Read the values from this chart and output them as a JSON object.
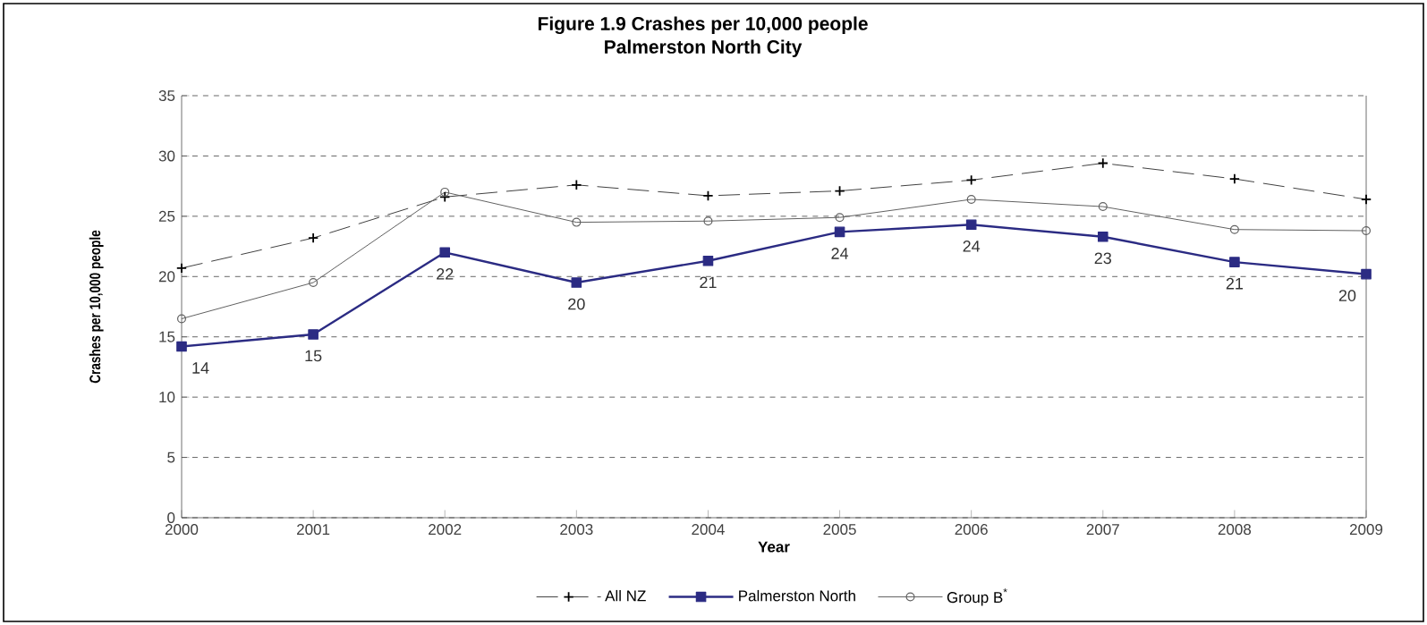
{
  "chart_data": {
    "type": "line",
    "title": "Figure 1.9 Crashes per 10,000 people",
    "subtitle": "Palmerston North City",
    "xlabel": "Year",
    "ylabel": "Crashes per 10,000 people",
    "x": [
      2000,
      2001,
      2002,
      2003,
      2004,
      2005,
      2006,
      2007,
      2008,
      2009
    ],
    "xlim": [
      2000,
      2009
    ],
    "xticks": [
      2000,
      2001,
      2002,
      2003,
      2004,
      2005,
      2006,
      2007,
      2008,
      2009
    ],
    "ylim": [
      0,
      35
    ],
    "yticks": [
      0,
      5,
      10,
      15,
      20,
      25,
      30,
      35
    ],
    "grid": "y",
    "legend": "bottom",
    "series": [
      {
        "name": "All NZ",
        "color": "#404040",
        "marker": "cross",
        "line_style": "dashed",
        "values": [
          20.7,
          23.2,
          26.6,
          27.6,
          26.7,
          27.1,
          28.0,
          29.4,
          28.1,
          26.4
        ]
      },
      {
        "name": "Palmerston North",
        "color": "#2b2b83",
        "marker": "square",
        "line_style": "solid",
        "values": [
          14.2,
          15.2,
          22.0,
          19.5,
          21.3,
          23.7,
          24.3,
          23.3,
          21.2,
          20.2
        ],
        "value_labels": [
          "14",
          "15",
          "22",
          "20",
          "21",
          "24",
          "24",
          "23",
          "21",
          "20"
        ]
      },
      {
        "name": "Group B$^{*}$",
        "color": "#606060",
        "marker": "circle",
        "line_style": "solid",
        "values": [
          16.5,
          19.5,
          27.0,
          24.5,
          24.6,
          24.9,
          26.4,
          25.8,
          23.9,
          23.8
        ]
      }
    ]
  }
}
